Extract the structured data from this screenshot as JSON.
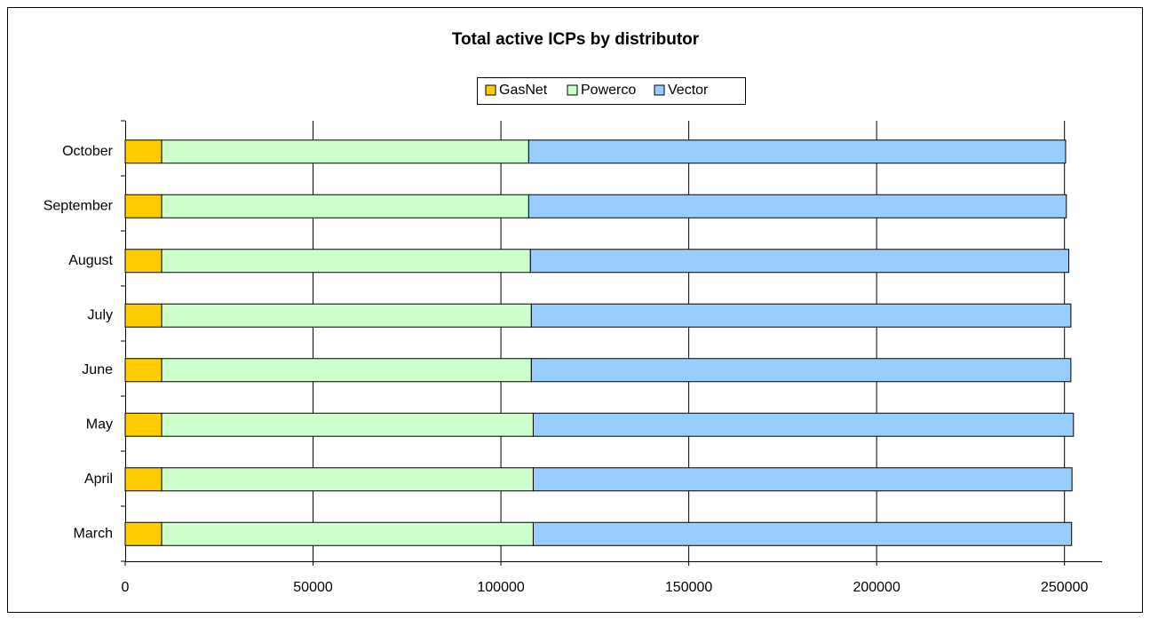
{
  "chart_data": {
    "type": "stacked_barh",
    "title": "Total active ICPs by distributor",
    "categories": [
      "March",
      "April",
      "May",
      "June",
      "July",
      "August",
      "September",
      "October"
    ],
    "series": [
      {
        "name": "GasNet",
        "color": "#ffcc00",
        "values": [
          9700,
          9700,
          9700,
          9700,
          9700,
          9700,
          9700,
          9700
        ]
      },
      {
        "name": "Powerco",
        "color": "#ccffcc",
        "values": [
          98900,
          98900,
          98900,
          98400,
          98400,
          98150,
          97700,
          97700
        ]
      },
      {
        "name": "Vector",
        "color": "#99ccff",
        "values": [
          143300,
          143400,
          143800,
          143600,
          143600,
          143300,
          143100,
          142900
        ]
      }
    ],
    "xlim": [
      0,
      260000
    ],
    "xticks": [
      0,
      50000,
      100000,
      150000,
      200000,
      250000
    ],
    "grid": true,
    "legend": "top"
  }
}
